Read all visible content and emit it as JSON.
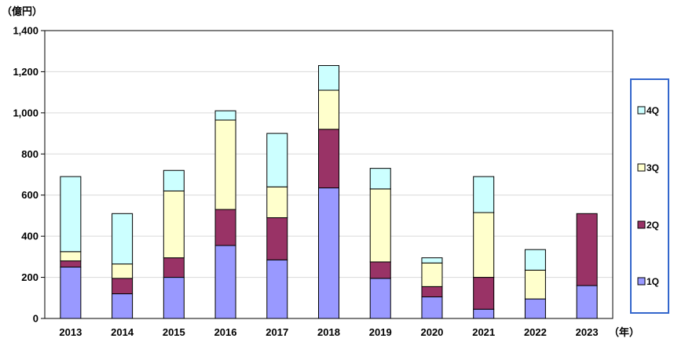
{
  "chart_data": {
    "type": "bar",
    "stacked": true,
    "title": "",
    "ylabel": "（億円）",
    "xlabel": "（年）",
    "categories": [
      "2013",
      "2014",
      "2015",
      "2016",
      "2017",
      "2018",
      "2019",
      "2020",
      "2021",
      "2022",
      "2023"
    ],
    "series": [
      {
        "name": "1Q",
        "color": "#9999FF",
        "values": [
          250,
          120,
          200,
          355,
          285,
          635,
          195,
          105,
          45,
          95,
          160
        ]
      },
      {
        "name": "2Q",
        "color": "#993366",
        "values": [
          30,
          75,
          95,
          175,
          205,
          285,
          80,
          50,
          155,
          0,
          350
        ]
      },
      {
        "name": "3Q",
        "color": "#FFFFCC",
        "values": [
          45,
          70,
          325,
          435,
          150,
          190,
          355,
          115,
          315,
          140,
          0
        ]
      },
      {
        "name": "4Q",
        "color": "#CCFFFF",
        "values": [
          365,
          245,
          100,
          45,
          260,
          120,
          100,
          25,
          175,
          100,
          0
        ]
      }
    ],
    "ylim": [
      0,
      1400
    ],
    "yticks": [
      "0",
      "200",
      "400",
      "600",
      "800",
      "1,000",
      "1,200",
      "1,400"
    ],
    "ytick_values": [
      0,
      200,
      400,
      600,
      800,
      1000,
      1200,
      1400
    ],
    "grid": true,
    "legend": {
      "placement": "right",
      "order": [
        "4Q",
        "3Q",
        "2Q",
        "1Q"
      ],
      "border_color": "#3366CC"
    }
  }
}
